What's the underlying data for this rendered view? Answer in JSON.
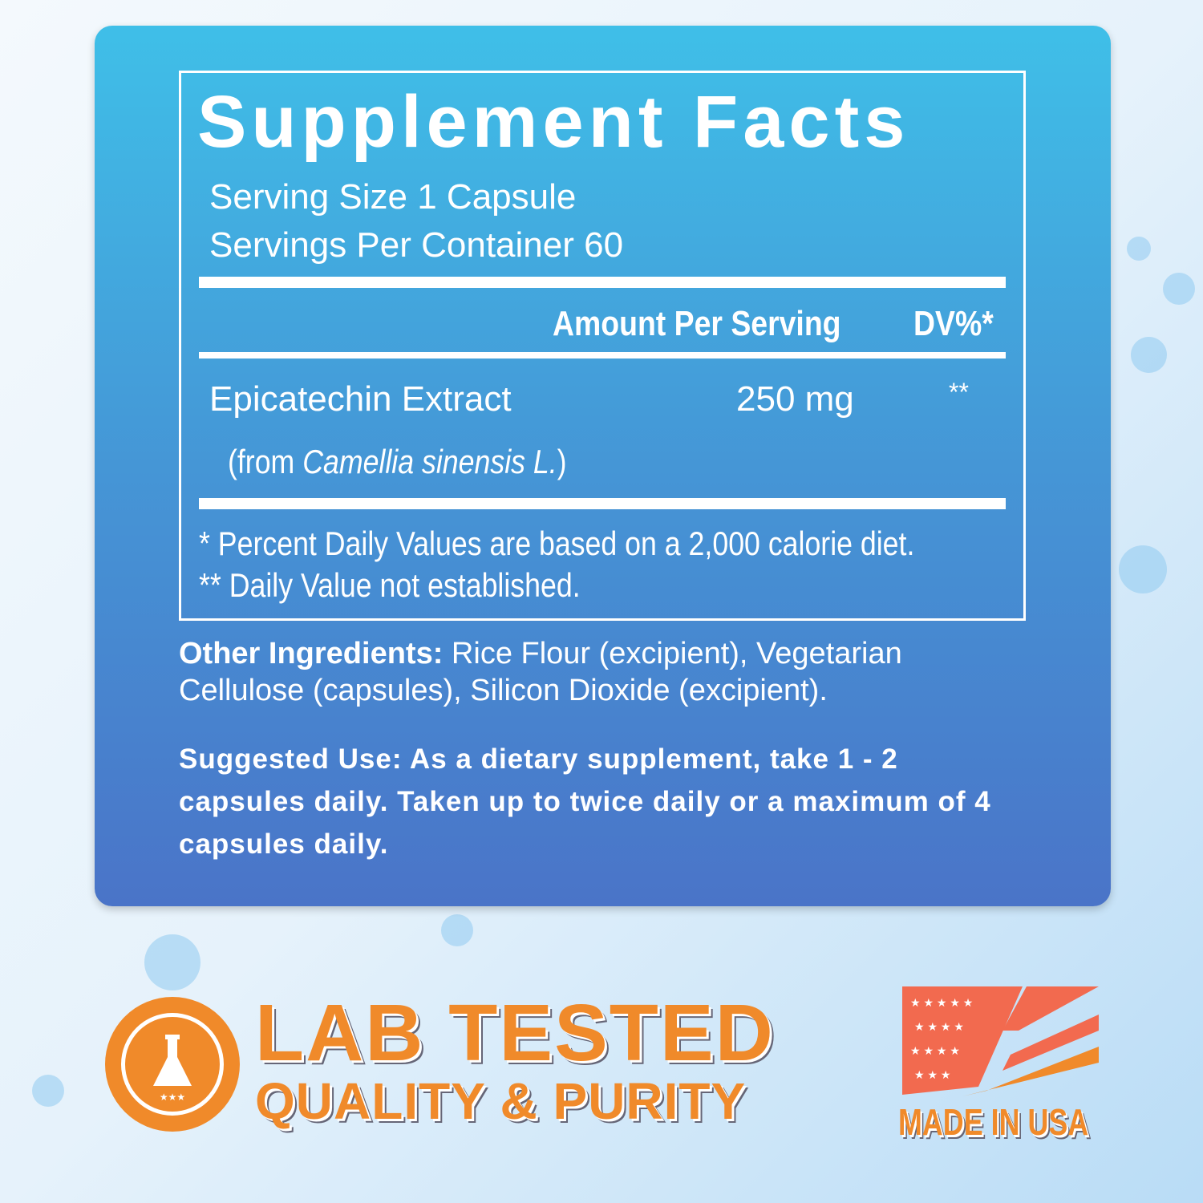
{
  "title": "Supplement Facts",
  "serving_size": "Serving Size 1 Capsule",
  "servings_per_container": "Servings Per Container 60",
  "headers": {
    "amount": "Amount Per Serving",
    "dv": "DV%*"
  },
  "ingredient": {
    "name": "Epicatechin Extract",
    "amount": "250 mg",
    "dv": "**",
    "source_prefix": "(from ",
    "source_italic": "Camellia sinensis L.",
    "source_suffix": ")"
  },
  "footnotes": [
    "* Percent Daily Values are based on a 2,000 calorie diet.",
    "** Daily Value not established."
  ],
  "other_ingredients": {
    "label": "Other Ingredients:",
    "text": " Rice Flour (excipient), Vegetarian Cellulose (capsules), Silicon Dioxide (excipient)."
  },
  "suggested_use": {
    "label": "Suggested Use:",
    "text": " As a dietary supplement, take 1 - 2 capsules daily. Taken up to twice daily or a maximum of 4 capsules daily."
  },
  "badges": {
    "lab_line1": "LAB TESTED",
    "lab_line2": "QUALITY & PURITY",
    "usa": "MADE IN USA",
    "lab_icon": "flask-icon",
    "usa_icon": "us-flag-icon"
  },
  "colors": {
    "panel_top": "#3fbfe8",
    "panel_bottom": "#4a74c8",
    "accent": "#f08a2a",
    "flag_red": "#f26a4f"
  }
}
